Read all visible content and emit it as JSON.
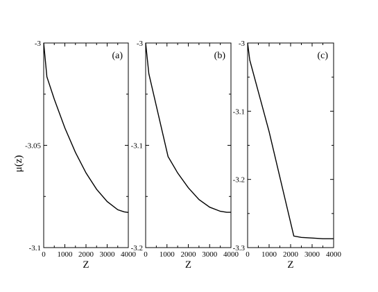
{
  "ylabel": "μ(z)",
  "chart_data": [
    {
      "type": "line",
      "label": "(a)",
      "xlabel": "Z",
      "xlim": [
        0,
        4000
      ],
      "ylim": [
        -3.1,
        -3.0
      ],
      "xticks": [
        "0",
        "1000",
        "2000",
        "3000",
        "4000"
      ],
      "yticks": [
        "-3",
        "-3.05",
        "-3.1"
      ],
      "x": [
        0,
        150,
        500,
        1000,
        1500,
        2000,
        2500,
        3000,
        3500,
        3800,
        4000
      ],
      "y": [
        -3.0,
        -3.0165,
        -3.0275,
        -3.0415,
        -3.0535,
        -3.0635,
        -3.0715,
        -3.0775,
        -3.0815,
        -3.0825,
        -3.0828
      ]
    },
    {
      "type": "line",
      "label": "(b)",
      "xlabel": "Z",
      "xlim": [
        0,
        4000
      ],
      "ylim": [
        -3.2,
        -3.0
      ],
      "xticks": [
        "0",
        "1000",
        "2000",
        "3000",
        "4000"
      ],
      "yticks": [
        "-3",
        "-3.1",
        "-3.2"
      ],
      "x": [
        0,
        150,
        1050,
        1500,
        2000,
        2500,
        3000,
        3500,
        3800,
        4000
      ],
      "y": [
        -3.0,
        -3.03,
        -3.111,
        -3.127,
        -3.1415,
        -3.153,
        -3.1605,
        -3.1645,
        -3.1655,
        -3.1655
      ]
    },
    {
      "type": "line",
      "label": "(c)",
      "xlabel": "Z",
      "xlim": [
        0,
        4000
      ],
      "ylim": [
        -3.3,
        -3.0
      ],
      "xticks": [
        "0",
        "1000",
        "2000",
        "3000",
        "4000"
      ],
      "yticks": [
        "-3",
        "-3.1",
        "-3.2",
        "-3.3"
      ],
      "x": [
        0,
        100,
        1000,
        2150,
        2500,
        3000,
        3500,
        4000
      ],
      "y": [
        -3.0,
        -3.025,
        -3.13,
        -3.283,
        -3.285,
        -3.286,
        -3.287,
        -3.287
      ]
    }
  ]
}
